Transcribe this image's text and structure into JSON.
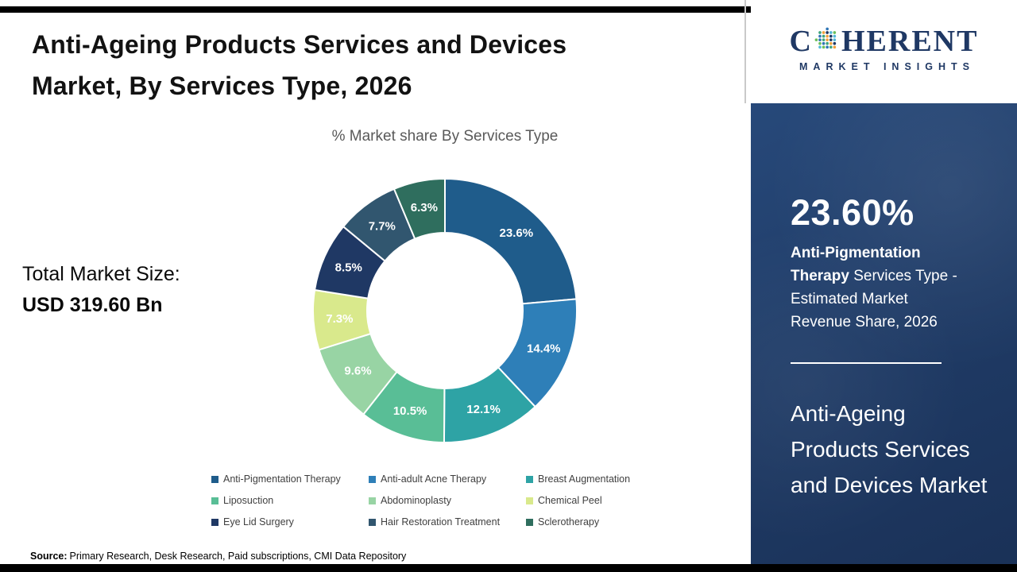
{
  "header": {
    "title_line1": "Anti-Ageing Products Services and Devices",
    "title_line2": "Market, By Services Type, 2026"
  },
  "main": {
    "total_market_label": "Total Market Size:",
    "total_market_value": "USD 319.60 Bn",
    "source_label": "Source:",
    "source_text": "Primary Research, Desk Research, Paid subscriptions, CMI Data Repository"
  },
  "chart_data": {
    "type": "pie",
    "subtype": "donut",
    "title": "% Market share By Services Type",
    "categories": [
      "Anti-Pigmentation Therapy",
      "Anti-adult Acne Therapy",
      "Breast Augmentation",
      "Liposuction",
      "Abdominoplasty",
      "Chemical Peel",
      "Eye Lid Surgery",
      "Hair Restoration Treatment",
      "Sclerotherapy"
    ],
    "values": [
      23.6,
      14.4,
      12.1,
      10.5,
      9.6,
      7.3,
      8.5,
      7.7,
      6.3
    ],
    "labels": [
      "23.6%",
      "14.4%",
      "12.1%",
      "10.5%",
      "9.6%",
      "7.3%",
      "8.5%",
      "7.7%",
      "6.3%"
    ],
    "colors": [
      "#1F5C8B",
      "#2E7FB8",
      "#2EA3A5",
      "#59BE96",
      "#98D4A4",
      "#D9E98C",
      "#1F3864",
      "#31566F",
      "#2F6E5E"
    ],
    "start_angle_deg": 0,
    "direction": "clockwise",
    "legend_position": "bottom"
  },
  "sidebar": {
    "logo": {
      "word_start": "C",
      "word_end": "HERENT",
      "tagline": "MARKET INSIGHTS",
      "brand_navy": "#1F3864",
      "globe_colors": [
        "#2E75B6",
        "#3FA47C",
        "#F2A23C",
        "#1F3864",
        "#52B8D8",
        "#6BBF5A"
      ]
    },
    "stat": {
      "value": "23.60%",
      "highlight": "Anti-Pigmentation Therapy",
      "rest": " Services Type - Estimated Market Revenue Share, 2026"
    },
    "market_name": "Anti-Ageing Products Services and Devices Market",
    "background": "#1E3A64"
  }
}
